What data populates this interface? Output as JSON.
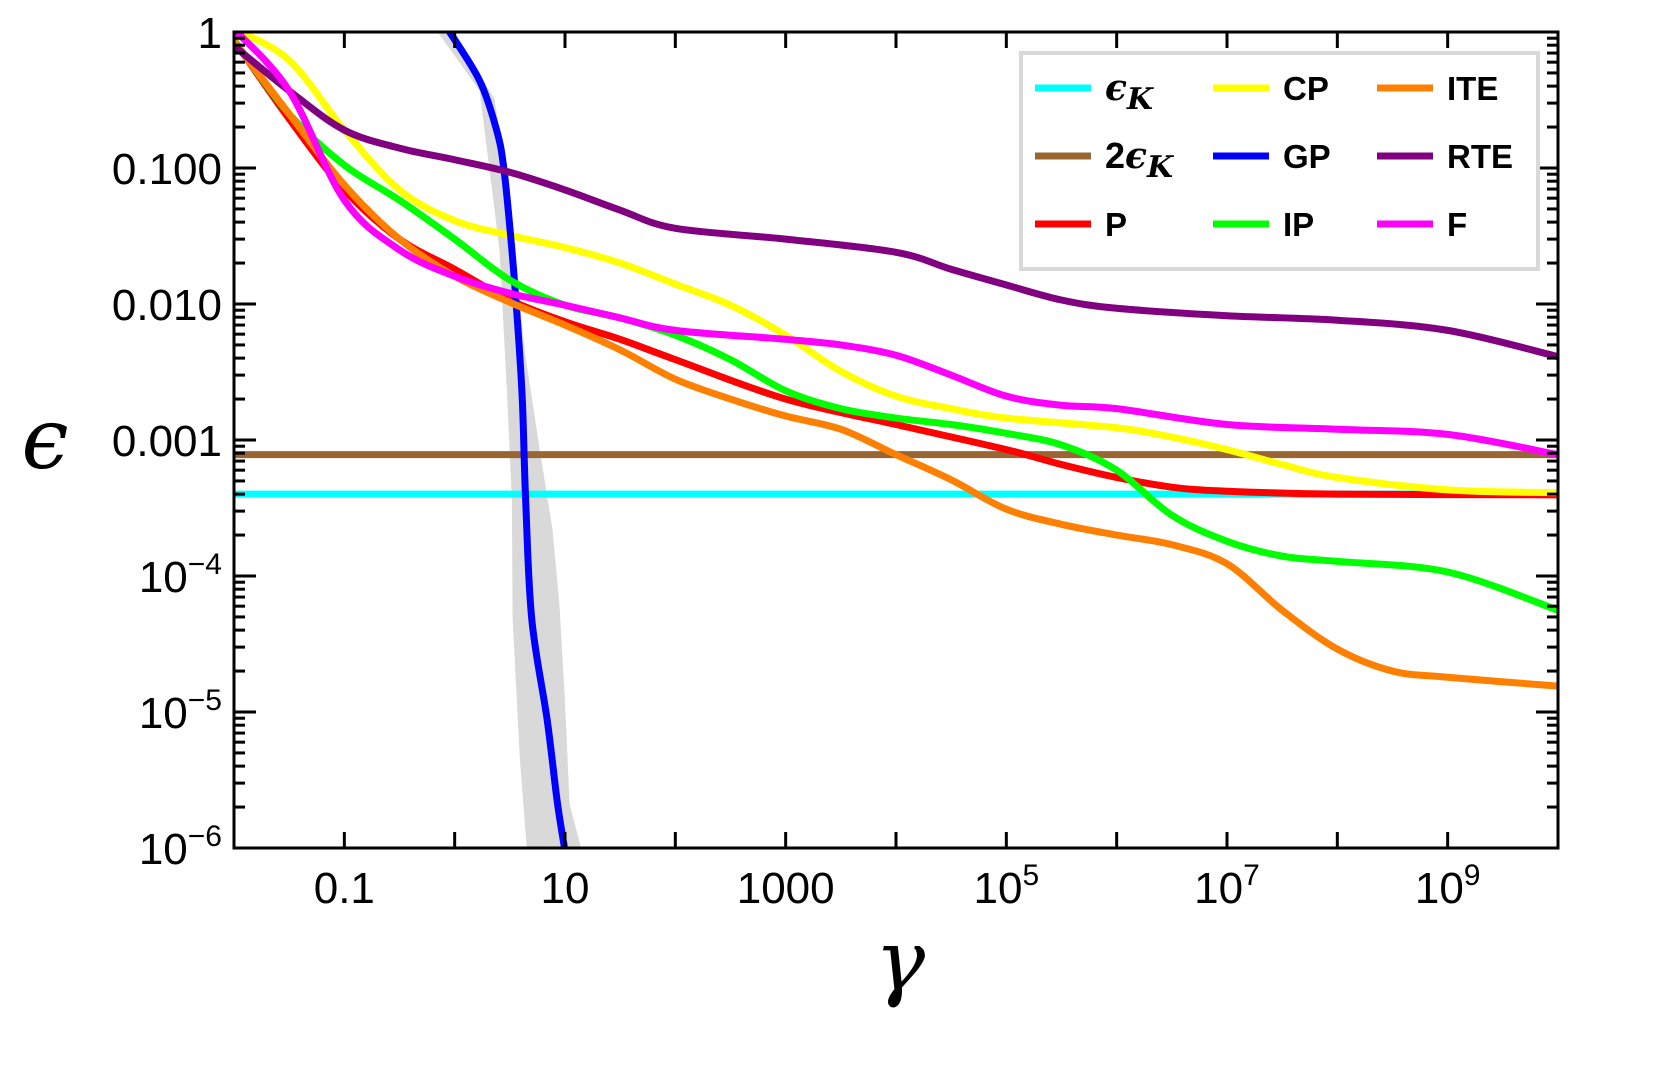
{
  "chart_data": {
    "type": "line",
    "xlabel": "γ",
    "ylabel": "ϵ",
    "xscale": "log",
    "yscale": "log",
    "xlim": [
      0.01,
      10000000000.0
    ],
    "ylim": [
      1e-06,
      1
    ],
    "grid": false,
    "legend_position": "top-right",
    "x_tick_labels": [
      {
        "value": 0.1,
        "base": "0.1",
        "exp": ""
      },
      {
        "value": 10,
        "base": "10",
        "exp": ""
      },
      {
        "value": 1000,
        "base": "1000",
        "exp": ""
      },
      {
        "value": 100000.0,
        "base": "10",
        "exp": "5"
      },
      {
        "value": 10000000.0,
        "base": "10",
        "exp": "7"
      },
      {
        "value": 1000000000.0,
        "base": "10",
        "exp": "9"
      }
    ],
    "y_tick_labels": [
      {
        "value": 1,
        "base": "1",
        "exp": ""
      },
      {
        "value": 0.1,
        "base": "0.100",
        "exp": ""
      },
      {
        "value": 0.01,
        "base": "0.010",
        "exp": ""
      },
      {
        "value": 0.001,
        "base": "0.001",
        "exp": ""
      },
      {
        "value": 0.0001,
        "base": "10",
        "exp": "−4"
      },
      {
        "value": 1e-05,
        "base": "10",
        "exp": "−5"
      },
      {
        "value": 1e-06,
        "base": "10",
        "exp": "−6"
      }
    ],
    "band": {
      "color": "#d9d9d9",
      "left_edge": [
        [
          0.7,
          1
        ],
        [
          1.68,
          0.37
        ],
        [
          2.07,
          0.097
        ],
        [
          2.55,
          0.025
        ],
        [
          3.0,
          0.002
        ],
        [
          3.3,
          0.00036
        ],
        [
          3.35,
          4.8e-05
        ],
        [
          3.9,
          4.5e-06
        ],
        [
          4.5,
          1e-06
        ]
      ],
      "right_edge": [
        [
          1.0,
          1
        ],
        [
          2.3,
          0.32
        ],
        [
          3.15,
          0.058
        ],
        [
          4.3,
          0.0046
        ],
        [
          5.9,
          0.00085
        ],
        [
          7.7,
          0.00022
        ],
        [
          8.9,
          6.2e-05
        ],
        [
          10,
          1.2e-05
        ],
        [
          11,
          2.1e-06
        ],
        [
          14,
          1e-06
        ]
      ]
    },
    "series": [
      {
        "name": "ϵ",
        "sub": "K",
        "prefix": "",
        "color": "#00ffff",
        "math": true,
        "points": [
          [
            0.01,
            0.0004
          ],
          [
            10000000000.0,
            0.0004
          ]
        ]
      },
      {
        "name": "ϵ",
        "sub": "K",
        "prefix": "2",
        "color": "#996633",
        "math": true,
        "points": [
          [
            0.01,
            0.00078
          ],
          [
            10000000000.0,
            0.00078
          ]
        ]
      },
      {
        "name": "P",
        "color": "#ff0000",
        "points": [
          [
            0.01,
            0.87
          ],
          [
            0.0316,
            0.23
          ],
          [
            0.1,
            0.069
          ],
          [
            0.316,
            0.03
          ],
          [
            1,
            0.018
          ],
          [
            3.16,
            0.0107
          ],
          [
            10,
            0.0074
          ],
          [
            31.6,
            0.0055
          ],
          [
            100,
            0.0039
          ],
          [
            1000,
            0.002
          ],
          [
            10000.0,
            0.0013
          ],
          [
            100000.0,
            0.00085
          ],
          [
            316000.0,
            0.00066
          ],
          [
            1000000.0,
            0.00053
          ],
          [
            3160000.0,
            0.00045
          ],
          [
            10000000.0,
            0.00042
          ],
          [
            100000000.0,
            0.0004
          ],
          [
            10000000000.0,
            0.000395
          ]
        ]
      },
      {
        "name": "CP",
        "color": "#ffff00",
        "points": [
          [
            0.01,
            1.05
          ],
          [
            0.0316,
            0.62
          ],
          [
            0.1,
            0.19
          ],
          [
            0.316,
            0.069
          ],
          [
            1,
            0.041
          ],
          [
            3.16,
            0.032
          ],
          [
            10,
            0.026
          ],
          [
            31.6,
            0.02
          ],
          [
            100,
            0.014
          ],
          [
            316,
            0.0098
          ],
          [
            1000,
            0.0059
          ],
          [
            3160,
            0.0032
          ],
          [
            10000.0,
            0.0021
          ],
          [
            31600.0,
            0.0017
          ],
          [
            100000.0,
            0.00145
          ],
          [
            1000000.0,
            0.00123
          ],
          [
            3160000.0,
            0.00105
          ],
          [
            10000000.0,
            0.00085
          ],
          [
            31600000.0,
            0.00066
          ],
          [
            100000000.0,
            0.00053
          ],
          [
            1000000000.0,
            0.00043
          ],
          [
            10000000000.0,
            0.00041
          ]
        ]
      },
      {
        "name": "GP",
        "color": "#0000ff",
        "points": [
          [
            0.9,
            1
          ],
          [
            1.68,
            0.44
          ],
          [
            2.4,
            0.19
          ],
          [
            2.8,
            0.097
          ],
          [
            3.3,
            0.025
          ],
          [
            3.7,
            0.0076
          ],
          [
            4.1,
            0.002
          ],
          [
            4.4,
            0.00036
          ],
          [
            5.0,
            4.8e-05
          ],
          [
            6.9,
            8.7e-06
          ],
          [
            8.5,
            2.2e-06
          ],
          [
            9.9,
            1e-06
          ]
        ]
      },
      {
        "name": "IP",
        "color": "#00ff00",
        "points": [
          [
            0.01,
            0.87
          ],
          [
            0.0316,
            0.25
          ],
          [
            0.1,
            0.105
          ],
          [
            0.316,
            0.058
          ],
          [
            1,
            0.03
          ],
          [
            3.16,
            0.015
          ],
          [
            10,
            0.0098
          ],
          [
            31.6,
            0.0079
          ],
          [
            100,
            0.0059
          ],
          [
            316,
            0.0039
          ],
          [
            1000,
            0.0023
          ],
          [
            3160,
            0.0017
          ],
          [
            10000.0,
            0.00145
          ],
          [
            31600.0,
            0.0013
          ],
          [
            100000.0,
            0.00112
          ],
          [
            316000.0,
            0.00092
          ],
          [
            1000000.0,
            0.0006
          ],
          [
            3160000.0,
            0.00028
          ],
          [
            10000000.0,
            0.00018
          ],
          [
            31600000.0,
            0.00014
          ],
          [
            100000000.0,
            0.000128
          ],
          [
            1000000000.0,
            0.000107
          ],
          [
            10000000000.0,
            5.6e-05
          ]
        ]
      },
      {
        "name": "ITE",
        "color": "#ff8000",
        "points": [
          [
            0.01,
            0.85
          ],
          [
            0.0316,
            0.25
          ],
          [
            0.1,
            0.075
          ],
          [
            0.316,
            0.03
          ],
          [
            1,
            0.016
          ],
          [
            3.16,
            0.0103
          ],
          [
            10,
            0.007
          ],
          [
            31.6,
            0.0046
          ],
          [
            100,
            0.0028
          ],
          [
            316,
            0.002
          ],
          [
            1000,
            0.0015
          ],
          [
            3160,
            0.0012
          ],
          [
            10000.0,
            0.00078
          ],
          [
            31600.0,
            0.00051
          ],
          [
            100000.0,
            0.00031
          ],
          [
            316000.0,
            0.00024
          ],
          [
            1000000.0,
            0.0002
          ],
          [
            3160000.0,
            0.00017
          ],
          [
            10000000.0,
            0.000123
          ],
          [
            31600000.0,
            5.6e-05
          ],
          [
            100000000.0,
            2.9e-05
          ],
          [
            316000000.0,
            2e-05
          ],
          [
            1000000000.0,
            1.8e-05
          ],
          [
            10000000000.0,
            1.55e-05
          ]
        ]
      },
      {
        "name": "RTE",
        "color": "#800080",
        "points": [
          [
            0.01,
            0.79
          ],
          [
            0.0316,
            0.37
          ],
          [
            0.1,
            0.19
          ],
          [
            0.316,
            0.14
          ],
          [
            1,
            0.115
          ],
          [
            3.16,
            0.093
          ],
          [
            10,
            0.069
          ],
          [
            31.6,
            0.049
          ],
          [
            100,
            0.036
          ],
          [
            1000,
            0.03
          ],
          [
            10000.0,
            0.024
          ],
          [
            31600.0,
            0.018
          ],
          [
            100000.0,
            0.0138
          ],
          [
            316000.0,
            0.0107
          ],
          [
            1000000.0,
            0.0093
          ],
          [
            10000000.0,
            0.0082
          ],
          [
            100000000.0,
            0.0076
          ],
          [
            1000000000.0,
            0.0064
          ],
          [
            10000000000.0,
            0.0041
          ]
        ]
      },
      {
        "name": "F",
        "color": "#ff00ff",
        "points": [
          [
            0.01,
            1.05
          ],
          [
            0.0316,
            0.37
          ],
          [
            0.1,
            0.058
          ],
          [
            0.316,
            0.025
          ],
          [
            1,
            0.016
          ],
          [
            3.16,
            0.012
          ],
          [
            10,
            0.0098
          ],
          [
            31.6,
            0.0079
          ],
          [
            100,
            0.0064
          ],
          [
            1000,
            0.0055
          ],
          [
            3160,
            0.005
          ],
          [
            10000.0,
            0.0042
          ],
          [
            31600.0,
            0.003
          ],
          [
            100000.0,
            0.0021
          ],
          [
            316000.0,
            0.0018
          ],
          [
            1000000.0,
            0.0017
          ],
          [
            10000000.0,
            0.0013
          ],
          [
            100000000.0,
            0.0012
          ],
          [
            1000000000.0,
            0.0011
          ],
          [
            10000000000.0,
            0.00078
          ]
        ]
      }
    ],
    "legend_order": [
      0,
      3,
      6,
      1,
      4,
      7,
      2,
      5,
      8
    ]
  }
}
